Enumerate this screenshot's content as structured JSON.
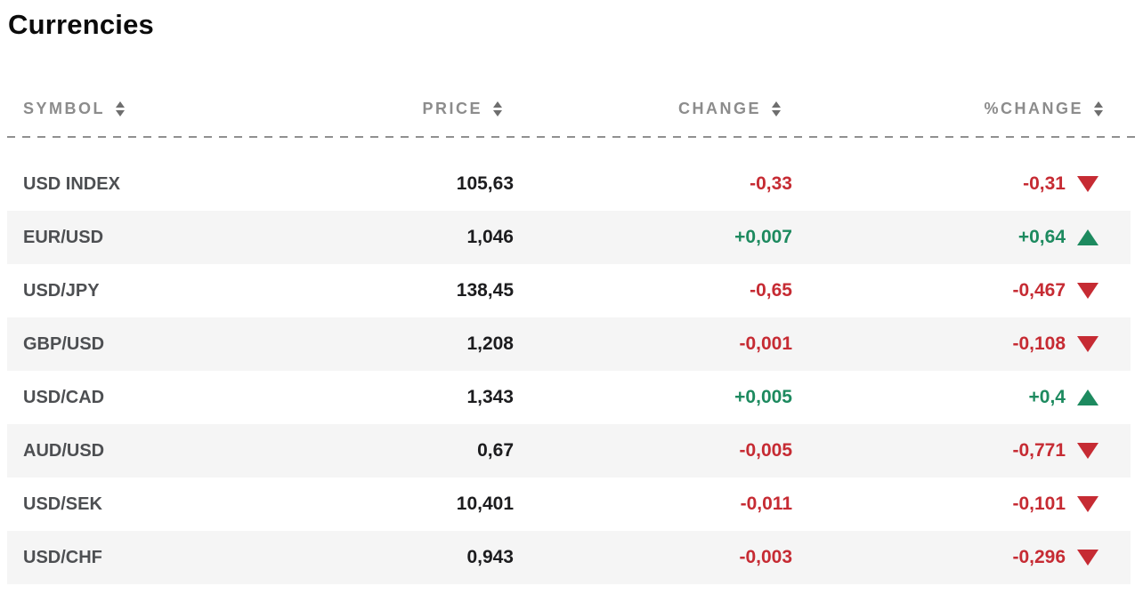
{
  "title": "Currencies",
  "colors": {
    "negative": "#c62b33",
    "positive": "#1d8a5f",
    "header_text": "#8c8c8c",
    "symbol_text": "#4d4f52",
    "price_text": "#1c1c1e",
    "stripe_bg": "#f5f5f5"
  },
  "table": {
    "columns": [
      {
        "key": "symbol",
        "label": "SYMBOL",
        "sortable": true
      },
      {
        "key": "price",
        "label": "PRICE",
        "sortable": true
      },
      {
        "key": "change",
        "label": "CHANGE",
        "sortable": true
      },
      {
        "key": "pct_change",
        "label": "%CHANGE",
        "sortable": true
      }
    ],
    "rows": [
      {
        "symbol": "USD INDEX",
        "price": "105,63",
        "change": "-0,33",
        "pct_change": "-0,31",
        "direction": "down"
      },
      {
        "symbol": "EUR/USD",
        "price": "1,046",
        "change": "+0,007",
        "pct_change": "+0,64",
        "direction": "up"
      },
      {
        "symbol": "USD/JPY",
        "price": "138,45",
        "change": "-0,65",
        "pct_change": "-0,467",
        "direction": "down"
      },
      {
        "symbol": "GBP/USD",
        "price": "1,208",
        "change": "-0,001",
        "pct_change": "-0,108",
        "direction": "down"
      },
      {
        "symbol": "USD/CAD",
        "price": "1,343",
        "change": "+0,005",
        "pct_change": "+0,4",
        "direction": "up"
      },
      {
        "symbol": "AUD/USD",
        "price": "0,67",
        "change": "-0,005",
        "pct_change": "-0,771",
        "direction": "down"
      },
      {
        "symbol": "USD/SEK",
        "price": "10,401",
        "change": "-0,011",
        "pct_change": "-0,101",
        "direction": "down"
      },
      {
        "symbol": "USD/CHF",
        "price": "0,943",
        "change": "-0,003",
        "pct_change": "-0,296",
        "direction": "down"
      }
    ]
  }
}
